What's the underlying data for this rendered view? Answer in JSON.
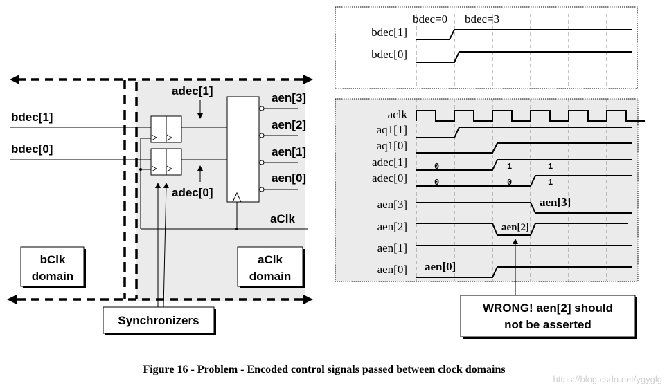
{
  "circuit": {
    "inputs": [
      "bdec[1]",
      "bdec[0]"
    ],
    "adec_labels": [
      "adec[1]",
      "adec[0]"
    ],
    "outputs": [
      "aen[3]",
      "aen[2]",
      "aen[1]",
      "aen[0]"
    ],
    "clock_label": "aClk",
    "bclk_domain": [
      "bClk",
      "domain"
    ],
    "aclk_domain": [
      "aClk",
      "domain"
    ],
    "synchronizers": "Synchronizers",
    "region_fill": "#ebebeb"
  },
  "timing_top": {
    "annotations": [
      "bdec=0",
      "bdec=3"
    ],
    "signals": [
      "bdec[1]",
      "bdec[0]"
    ]
  },
  "timing_bottom": {
    "signals": [
      "aclk",
      "aq1[1]",
      "aq1[0]",
      "adec[1]",
      "adec[0]",
      "aen[3]",
      "aen[2]",
      "aen[1]",
      "aen[0]"
    ],
    "adec1_values": [
      "0",
      "1",
      "1"
    ],
    "adec0_values": [
      "0",
      "0",
      "1"
    ],
    "pulse_labels": {
      "aen3": "aen[3]",
      "aen2": "aen[2]",
      "aen0": "aen[0]"
    }
  },
  "callout": [
    "WRONG! aen[2] should",
    "not be asserted"
  ],
  "caption": "Figure 16 - Problem - Encoded control signals passed between clock domains",
  "watermark": "https://blog.csdn.net/ygyglg"
}
